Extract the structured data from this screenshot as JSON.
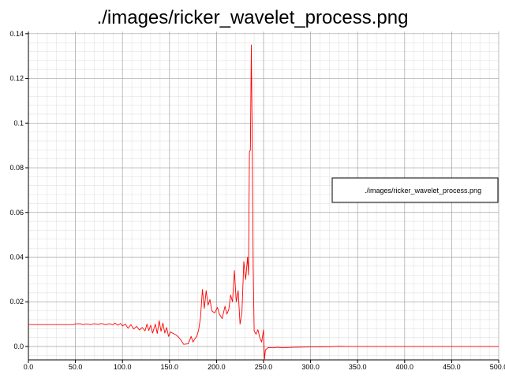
{
  "chart_data": {
    "type": "line",
    "title": "./images/ricker_wavelet_process.png",
    "xlabel": "",
    "ylabel": "",
    "xlim": [
      0,
      500
    ],
    "ylim": [
      -0.006,
      0.141
    ],
    "x_ticks": [
      "0.0",
      "50.0",
      "100.0",
      "150.0",
      "200.0",
      "250.0",
      "300.0",
      "350.0",
      "400.0",
      "450.0",
      "500.0"
    ],
    "y_ticks": [
      "0.0",
      "0.02",
      "0.04",
      "0.06",
      "0.08",
      "0.1",
      "0.12",
      "0.14"
    ],
    "grid": true,
    "legend_position": "right",
    "series": [
      {
        "name": "./images/ricker_wavelet_process.png",
        "color": "#ff0000",
        "points": [
          [
            0,
            0.0098
          ],
          [
            10,
            0.0098
          ],
          [
            20,
            0.0098
          ],
          [
            30,
            0.0098
          ],
          [
            40,
            0.0098
          ],
          [
            48,
            0.0098
          ],
          [
            50,
            0.0101
          ],
          [
            55,
            0.0102
          ],
          [
            58,
            0.0098
          ],
          [
            62,
            0.0101
          ],
          [
            66,
            0.0098
          ],
          [
            70,
            0.0102
          ],
          [
            74,
            0.0099
          ],
          [
            78,
            0.0103
          ],
          [
            82,
            0.0097
          ],
          [
            86,
            0.0102
          ],
          [
            90,
            0.0097
          ],
          [
            92,
            0.0105
          ],
          [
            95,
            0.0095
          ],
          [
            98,
            0.0103
          ],
          [
            100,
            0.0092
          ],
          [
            103,
            0.01
          ],
          [
            106,
            0.0082
          ],
          [
            109,
            0.0098
          ],
          [
            112,
            0.0078
          ],
          [
            115,
            0.009
          ],
          [
            118,
            0.0074
          ],
          [
            121,
            0.0085
          ],
          [
            124,
            0.007
          ],
          [
            126,
            0.01
          ],
          [
            128,
            0.0072
          ],
          [
            130,
            0.0095
          ],
          [
            132,
            0.006
          ],
          [
            135,
            0.01
          ],
          [
            137,
            0.0058
          ],
          [
            139,
            0.0115
          ],
          [
            141,
            0.0068
          ],
          [
            143,
            0.0105
          ],
          [
            145,
            0.006
          ],
          [
            147,
            0.0085
          ],
          [
            149,
            0.0045
          ],
          [
            151,
            0.0065
          ],
          [
            154,
            0.0058
          ],
          [
            157,
            0.0052
          ],
          [
            160,
            0.004
          ],
          [
            162,
            0.003
          ],
          [
            165,
            0.001
          ],
          [
            170,
            0.0012
          ],
          [
            173,
            0.0045
          ],
          [
            175,
            0.002
          ],
          [
            177,
            0.0035
          ],
          [
            179,
            0.0045
          ],
          [
            181,
            0.0075
          ],
          [
            183,
            0.013
          ],
          [
            185,
            0.0255
          ],
          [
            187,
            0.017
          ],
          [
            189,
            0.025
          ],
          [
            191,
            0.0185
          ],
          [
            193,
            0.021
          ],
          [
            195,
            0.016
          ],
          [
            198,
            0.015
          ],
          [
            201,
            0.0175
          ],
          [
            203,
            0.0145
          ],
          [
            206,
            0.0125
          ],
          [
            209,
            0.018
          ],
          [
            211,
            0.0145
          ],
          [
            213,
            0.0165
          ],
          [
            215,
            0.023
          ],
          [
            217,
            0.02
          ],
          [
            219,
            0.034
          ],
          [
            221,
            0.02
          ],
          [
            223,
            0.025
          ],
          [
            225,
            0.01
          ],
          [
            227,
            0.015
          ],
          [
            229,
            0.038
          ],
          [
            231,
            0.03
          ],
          [
            233,
            0.04
          ],
          [
            234,
            0.032
          ],
          [
            235,
            0.087
          ],
          [
            236,
            0.088
          ],
          [
            237,
            0.135
          ],
          [
            238,
            0.09
          ],
          [
            239,
            0.035
          ],
          [
            240,
            0.007
          ],
          [
            242,
            0.0055
          ],
          [
            244,
            0.0075
          ],
          [
            246,
            0.004
          ],
          [
            248,
            0.002
          ],
          [
            250,
            0.0075
          ],
          [
            251,
            -0.006
          ],
          [
            252,
            -0.0015
          ],
          [
            255,
            -0.0005
          ],
          [
            260,
            -0.0006
          ],
          [
            265,
            -0.0004
          ],
          [
            270,
            -0.0006
          ],
          [
            280,
            -0.0004
          ],
          [
            290,
            -0.0003
          ],
          [
            300,
            -0.0002
          ],
          [
            320,
            -0.0001
          ],
          [
            330,
            0.0001
          ],
          [
            340,
            0.0
          ],
          [
            360,
            0.0
          ],
          [
            380,
            0.0
          ],
          [
            400,
            0.0
          ],
          [
            450,
            0.0
          ],
          [
            500,
            0.0
          ]
        ]
      }
    ]
  }
}
